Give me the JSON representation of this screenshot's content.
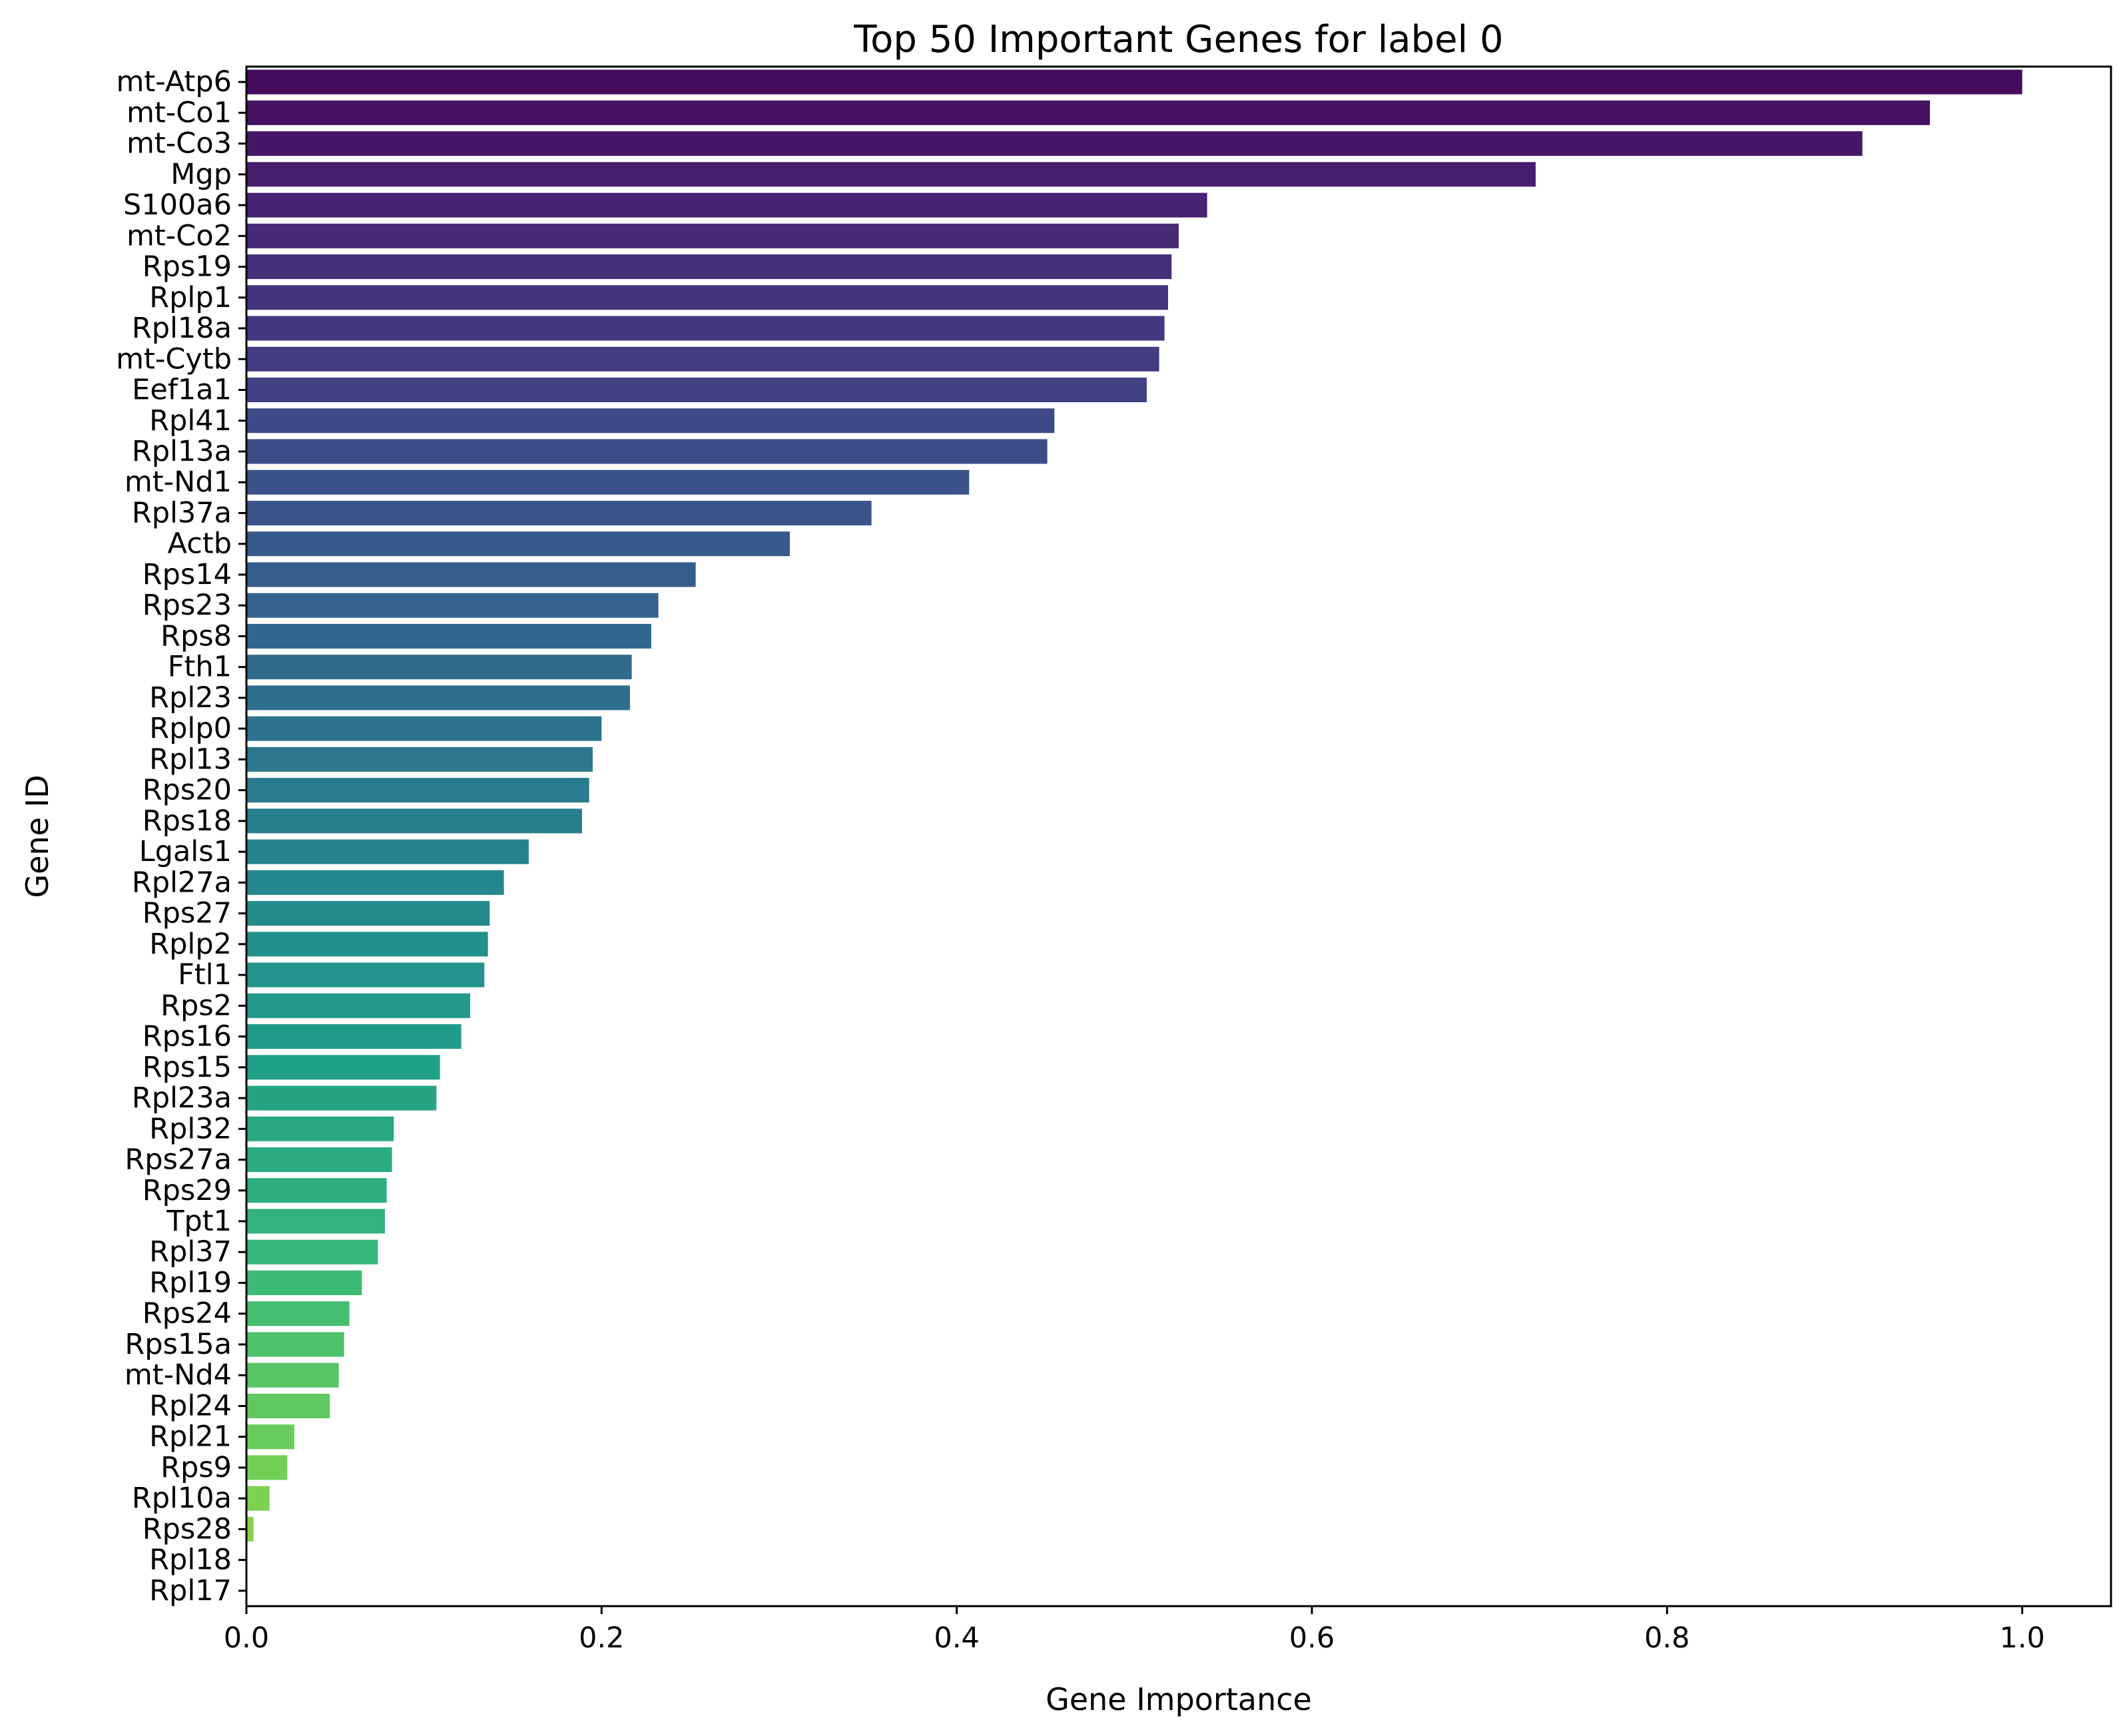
{
  "chart_data": {
    "type": "bar",
    "orientation": "horizontal",
    "title": "Top 50 Important Genes for label 0",
    "xlabel": "Gene Importance",
    "ylabel": "Gene ID",
    "xlim": [
      0.0,
      1.05
    ],
    "xticks": [
      "0.0",
      "0.2",
      "0.4",
      "0.6",
      "0.8",
      "1.0"
    ],
    "grid": false,
    "legend": "none",
    "colormap": "viridis",
    "categories": [
      "mt-Atp6",
      "mt-Co1",
      "mt-Co3",
      "Mgp",
      "S100a6",
      "mt-Co2",
      "Rps19",
      "Rplp1",
      "Rpl18a",
      "mt-Cytb",
      "Eef1a1",
      "Rpl41",
      "Rpl13a",
      "mt-Nd1",
      "Rpl37a",
      "Actb",
      "Rps14",
      "Rps23",
      "Rps8",
      "Fth1",
      "Rpl23",
      "Rplp0",
      "Rpl13",
      "Rps20",
      "Rps18",
      "Lgals1",
      "Rpl27a",
      "Rps27",
      "Rplp2",
      "Ftl1",
      "Rps2",
      "Rps16",
      "Rps15",
      "Rpl23a",
      "Rpl32",
      "Rps27a",
      "Rps29",
      "Tpt1",
      "Rpl37",
      "Rpl19",
      "Rps24",
      "Rps15a",
      "mt-Nd4",
      "Rpl24",
      "Rpl21",
      "Rps9",
      "Rpl10a",
      "Rps28",
      "Rpl18",
      "Rpl17"
    ],
    "values": [
      1.0,
      0.948,
      0.91,
      0.726,
      0.541,
      0.525,
      0.521,
      0.519,
      0.517,
      0.514,
      0.507,
      0.455,
      0.451,
      0.407,
      0.352,
      0.306,
      0.253,
      0.232,
      0.228,
      0.217,
      0.216,
      0.2,
      0.195,
      0.193,
      0.189,
      0.159,
      0.145,
      0.137,
      0.136,
      0.134,
      0.126,
      0.121,
      0.109,
      0.107,
      0.083,
      0.082,
      0.079,
      0.078,
      0.074,
      0.065,
      0.058,
      0.055,
      0.052,
      0.047,
      0.027,
      0.023,
      0.013,
      0.004,
      0.0,
      0.0
    ]
  }
}
